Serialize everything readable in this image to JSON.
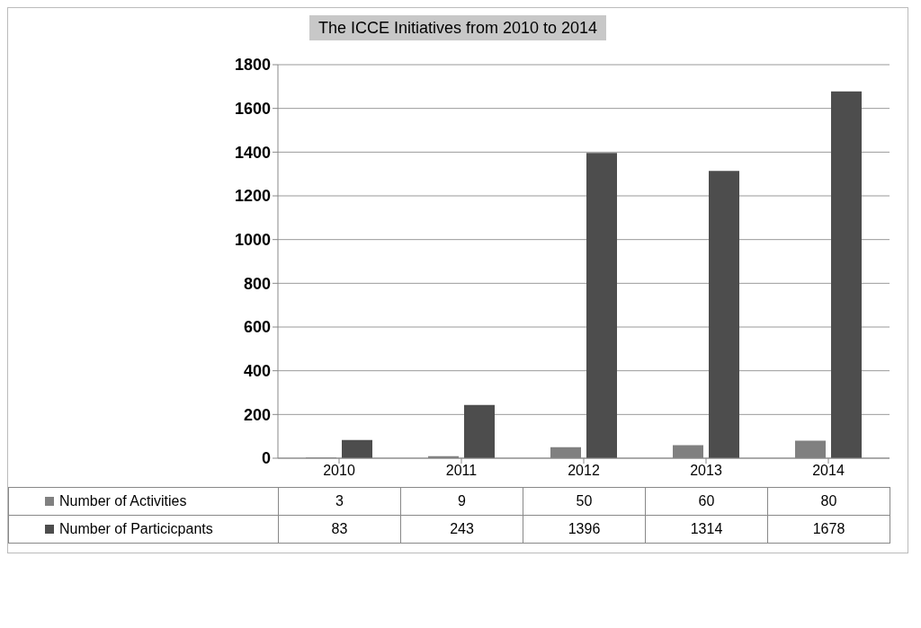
{
  "chart_data": {
    "type": "bar",
    "title": "The ICCE Initiatives from 2010 to 2014",
    "categories": [
      "2010",
      "2011",
      "2012",
      "2013",
      "2014"
    ],
    "series": [
      {
        "name": "Number of Activities",
        "color": "#808080",
        "values": [
          3,
          9,
          50,
          60,
          80
        ]
      },
      {
        "name": "Number of Particicpants",
        "color": "#4d4d4d",
        "values": [
          83,
          243,
          1396,
          1314,
          1678
        ]
      }
    ],
    "ylim": [
      0,
      1800
    ],
    "yticks": [
      0,
      200,
      400,
      600,
      800,
      1000,
      1200,
      1400,
      1600,
      1800
    ],
    "grid": "y",
    "legend": "bottom",
    "data_labels": true
  }
}
